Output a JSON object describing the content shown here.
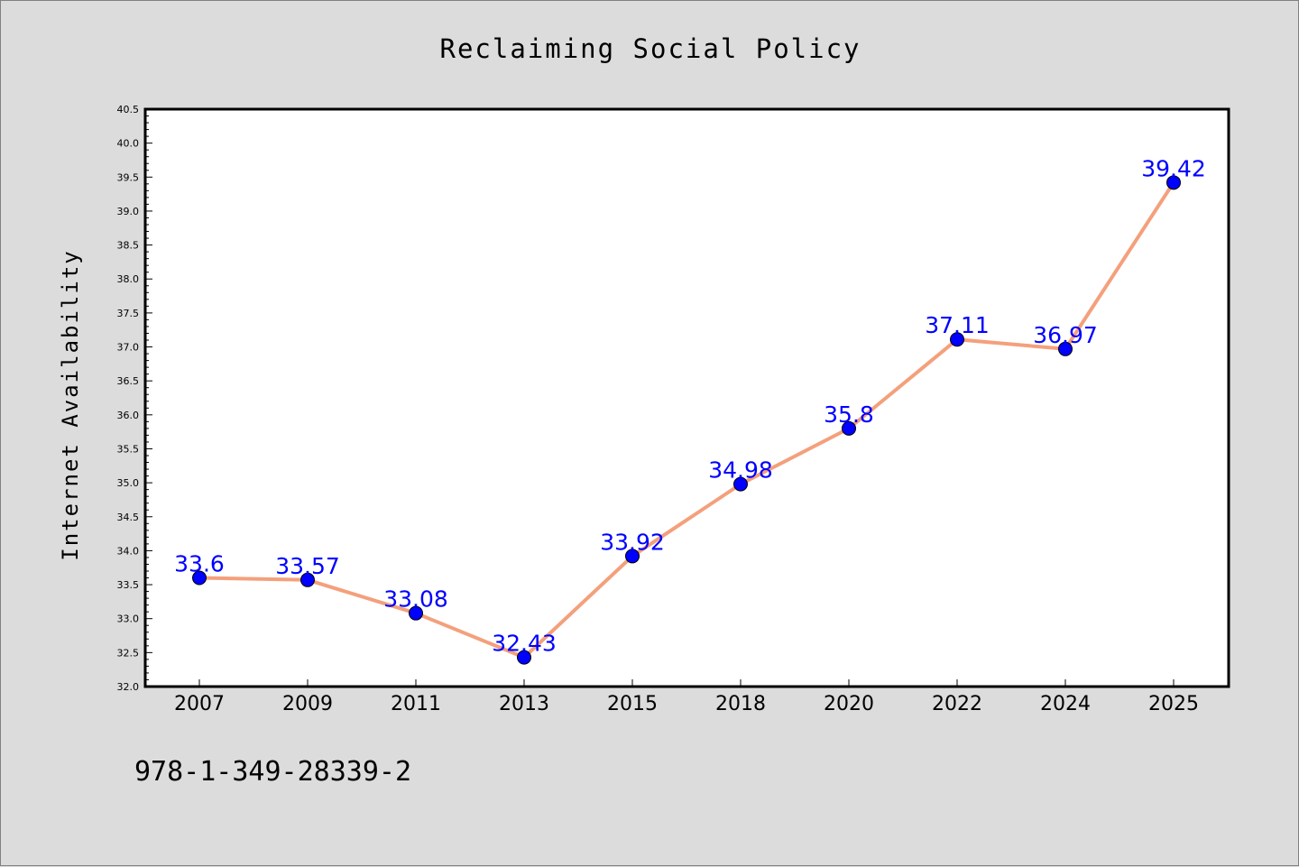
{
  "chart_data": {
    "type": "line",
    "title": "Reclaiming Social Policy",
    "xlabel": "",
    "ylabel": "Internet Availability",
    "categories": [
      "2007",
      "2009",
      "2011",
      "2013",
      "2015",
      "2018",
      "2020",
      "2022",
      "2024",
      "2025"
    ],
    "series": [
      {
        "values": [
          33.6,
          33.57,
          33.08,
          32.43,
          33.92,
          34.98,
          35.8,
          37.11,
          36.97,
          39.42
        ],
        "line_color": "#f4a07c",
        "marker_color": "#0000ff"
      }
    ],
    "ylim": [
      32.0,
      40.5
    ],
    "yticks": [
      "32.0",
      "32.5",
      "33.0",
      "33.5",
      "34.0",
      "34.5",
      "35.0",
      "35.5",
      "36.0",
      "36.5",
      "37.0",
      "37.5",
      "38.0",
      "38.5",
      "39.0",
      "39.5",
      "40.0",
      "40.5"
    ],
    "data_labels": [
      "33.6",
      "33.57",
      "33.08",
      "32.43",
      "33.92",
      "34.98",
      "35.8",
      "37.11",
      "36.97",
      "39.42"
    ],
    "grid": false,
    "legend": "none"
  },
  "footer": {
    "isbn": "978-1-349-28339-2"
  }
}
